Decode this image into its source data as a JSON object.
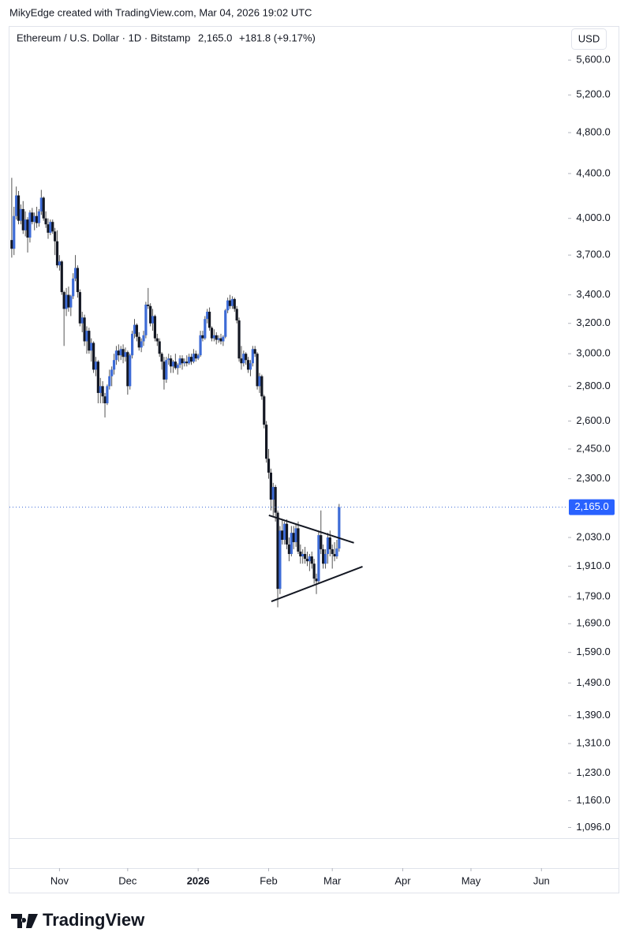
{
  "chart_data": {
    "type": "candlestick",
    "credit": "MikyEdge created with TradingView.com, Mar 04, 2026 19:02 UTC",
    "title": "Ethereum / U.S. Dollar · 1D · Bitstamp",
    "change": "+181.8 (+9.17%)",
    "currency": "USD",
    "brand": "TradingView",
    "last_price": {
      "value": 2165,
      "label": "2,165.0"
    },
    "log_scale": true,
    "up_color": "#3d6bd6",
    "down_color": "#131722",
    "xlim": [
      -1,
      244
    ],
    "xticks": [
      {
        "value": 21,
        "label": "Nov"
      },
      {
        "value": 51,
        "label": "Dec"
      },
      {
        "value": 82,
        "label": "2026"
      },
      {
        "value": 113,
        "label": "Feb"
      },
      {
        "value": 141,
        "label": "Mar"
      },
      {
        "value": 172,
        "label": "Apr"
      },
      {
        "value": 202,
        "label": "May"
      },
      {
        "value": 233,
        "label": "Jun"
      }
    ],
    "ylim": [
      1075,
      6000
    ],
    "yticks": [
      {
        "value": 5600,
        "label": "5,600.0"
      },
      {
        "value": 5200,
        "label": "5,200.0"
      },
      {
        "value": 4800,
        "label": "4,800.0"
      },
      {
        "value": 4400,
        "label": "4,400.0"
      },
      {
        "value": 4000,
        "label": "4,000.0"
      },
      {
        "value": 3700,
        "label": "3,700.0"
      },
      {
        "value": 3400,
        "label": "3,400.0"
      },
      {
        "value": 3200,
        "label": "3,200.0"
      },
      {
        "value": 3000,
        "label": "3,000.0"
      },
      {
        "value": 2800,
        "label": "2,800.0"
      },
      {
        "value": 2600,
        "label": "2,600.0"
      },
      {
        "value": 2450,
        "label": "2,450.0"
      },
      {
        "value": 2300,
        "label": "2,300.0"
      },
      {
        "value": 2030,
        "label": "2,030.0"
      },
      {
        "value": 1910,
        "label": "1,910.0"
      },
      {
        "value": 1790,
        "label": "1,790.0"
      },
      {
        "value": 1690,
        "label": "1,690.0"
      },
      {
        "value": 1590,
        "label": "1,590.0"
      },
      {
        "value": 1490,
        "label": "1,490.0"
      },
      {
        "value": 1390,
        "label": "1,390.0"
      },
      {
        "value": 1310,
        "label": "1,310.0"
      },
      {
        "value": 1230,
        "label": "1,230.0"
      },
      {
        "value": 1160,
        "label": "1,160.0"
      },
      {
        "value": 1096,
        "label": "1,096.0"
      }
    ],
    "trendlines": [
      {
        "points": [
          [
            113.1,
            2128
          ],
          [
            150.5,
            2007
          ]
        ]
      },
      {
        "points": [
          [
            114.2,
            1772
          ],
          [
            154.3,
            1908
          ]
        ]
      }
    ],
    "candles": [
      [
        3820,
        4360,
        3680,
        3750
      ],
      [
        3750,
        4100,
        3700,
        4020
      ],
      [
        4020,
        4280,
        3990,
        4200
      ],
      [
        4200,
        4240,
        3950,
        3980
      ],
      [
        3980,
        4120,
        3950,
        4080
      ],
      [
        4080,
        4150,
        3870,
        3900
      ],
      [
        3900,
        4060,
        3850,
        3990
      ],
      [
        3990,
        4010,
        3720,
        3840
      ],
      [
        3840,
        4070,
        3800,
        4050
      ],
      [
        4050,
        4090,
        3950,
        3970
      ],
      [
        3970,
        4050,
        3900,
        4020
      ],
      [
        4020,
        4100,
        3920,
        3960
      ],
      [
        3960,
        4080,
        3930,
        4060
      ],
      [
        4060,
        4250,
        4030,
        4180
      ],
      [
        4180,
        4190,
        3980,
        4000
      ],
      [
        4000,
        4060,
        3920,
        3950
      ],
      [
        3950,
        4000,
        3830,
        3880
      ],
      [
        3880,
        3990,
        3860,
        3970
      ],
      [
        3970,
        3990,
        3870,
        3890
      ],
      [
        3890,
        3920,
        3700,
        3810
      ],
      [
        3810,
        3900,
        3600,
        3620
      ],
      [
        3620,
        3700,
        3580,
        3650
      ],
      [
        3650,
        3660,
        3400,
        3420
      ],
      [
        3420,
        3430,
        3050,
        3300
      ],
      [
        3300,
        3450,
        3250,
        3400
      ],
      [
        3400,
        3460,
        3280,
        3310
      ],
      [
        3310,
        3400,
        3250,
        3390
      ],
      [
        3390,
        3560,
        3370,
        3520
      ],
      [
        3520,
        3700,
        3500,
        3600
      ],
      [
        3600,
        3620,
        3380,
        3420
      ],
      [
        3420,
        3440,
        3180,
        3200
      ],
      [
        3200,
        3280,
        3140,
        3240
      ],
      [
        3240,
        3260,
        3050,
        3080
      ],
      [
        3080,
        3180,
        3000,
        3150
      ],
      [
        3150,
        3170,
        3000,
        3020
      ],
      [
        3020,
        3100,
        2950,
        3070
      ],
      [
        3070,
        3080,
        2880,
        2900
      ],
      [
        2900,
        2980,
        2860,
        2950
      ],
      [
        2950,
        2960,
        2700,
        2760
      ],
      [
        2760,
        2850,
        2700,
        2800
      ],
      [
        2800,
        2830,
        2700,
        2740
      ],
      [
        2740,
        2760,
        2620,
        2700
      ],
      [
        2700,
        2810,
        2690,
        2800
      ],
      [
        2800,
        2900,
        2780,
        2860
      ],
      [
        2860,
        2920,
        2800,
        2900
      ],
      [
        2900,
        3000,
        2870,
        2960
      ],
      [
        2960,
        3050,
        2930,
        3020
      ],
      [
        3020,
        3060,
        2950,
        2990
      ],
      [
        2990,
        3050,
        2960,
        3030
      ],
      [
        3030,
        3060,
        2940,
        2980
      ],
      [
        2980,
        3040,
        2950,
        3010
      ],
      [
        3010,
        3020,
        2750,
        2800
      ],
      [
        2800,
        3000,
        2780,
        2990
      ],
      [
        2990,
        3150,
        2970,
        3130
      ],
      [
        3130,
        3230,
        3100,
        3190
      ],
      [
        3190,
        3200,
        3080,
        3110
      ],
      [
        3110,
        3140,
        3020,
        3040
      ],
      [
        3040,
        3100,
        3010,
        3080
      ],
      [
        3080,
        3150,
        3050,
        3120
      ],
      [
        3120,
        3350,
        3100,
        3330
      ],
      [
        3330,
        3450,
        3300,
        3320
      ],
      [
        3320,
        3340,
        3180,
        3200
      ],
      [
        3200,
        3300,
        3150,
        3250
      ],
      [
        3250,
        3260,
        3080,
        3100
      ],
      [
        3100,
        3130,
        3050,
        3080
      ],
      [
        3080,
        3100,
        2980,
        3000
      ],
      [
        3000,
        3010,
        2900,
        2950
      ],
      [
        2950,
        2980,
        2780,
        2840
      ],
      [
        2840,
        2980,
        2820,
        2960
      ],
      [
        2960,
        3000,
        2930,
        2970
      ],
      [
        2970,
        2990,
        2880,
        2920
      ],
      [
        2920,
        2960,
        2880,
        2950
      ],
      [
        2950,
        3000,
        2900,
        2910
      ],
      [
        2910,
        2940,
        2870,
        2930
      ],
      [
        2930,
        2990,
        2910,
        2970
      ],
      [
        2970,
        2990,
        2900,
        2940
      ],
      [
        2940,
        2970,
        2920,
        2950
      ],
      [
        2950,
        2990,
        2920,
        2940
      ],
      [
        2940,
        3000,
        2930,
        2980
      ],
      [
        2980,
        3000,
        2930,
        2950
      ],
      [
        2950,
        3030,
        2940,
        3000
      ],
      [
        3000,
        3020,
        2950,
        2970
      ],
      [
        2970,
        3000,
        2960,
        2990
      ],
      [
        2990,
        3150,
        2980,
        3120
      ],
      [
        3120,
        3150,
        3080,
        3100
      ],
      [
        3100,
        3250,
        3090,
        3230
      ],
      [
        3230,
        3300,
        3200,
        3280
      ],
      [
        3280,
        3310,
        3150,
        3170
      ],
      [
        3170,
        3180,
        3080,
        3100
      ],
      [
        3100,
        3160,
        3080,
        3120
      ],
      [
        3120,
        3140,
        3060,
        3090
      ],
      [
        3090,
        3120,
        3070,
        3100
      ],
      [
        3100,
        3130,
        3060,
        3080
      ],
      [
        3080,
        3120,
        3050,
        3110
      ],
      [
        3110,
        3300,
        3100,
        3290
      ],
      [
        3290,
        3380,
        3270,
        3360
      ],
      [
        3360,
        3400,
        3300,
        3320
      ],
      [
        3320,
        3390,
        3300,
        3370
      ],
      [
        3370,
        3380,
        3280,
        3300
      ],
      [
        3300,
        3320,
        3200,
        3220
      ],
      [
        3220,
        3240,
        2950,
        2970
      ],
      [
        2970,
        3050,
        2900,
        2940
      ],
      [
        2940,
        3020,
        2920,
        3000
      ],
      [
        3000,
        3010,
        2930,
        2960
      ],
      [
        2960,
        2980,
        2880,
        2900
      ],
      [
        2900,
        2960,
        2860,
        2940
      ],
      [
        2940,
        3050,
        2920,
        3030
      ],
      [
        3030,
        3050,
        2980,
        3000
      ],
      [
        3000,
        3010,
        2780,
        2800
      ],
      [
        2800,
        2880,
        2760,
        2860
      ],
      [
        2860,
        2870,
        2720,
        2740
      ],
      [
        2740,
        2750,
        2560,
        2580
      ],
      [
        2580,
        2600,
        2380,
        2400
      ],
      [
        2400,
        2450,
        2300,
        2330
      ],
      [
        2330,
        2350,
        2150,
        2200
      ],
      [
        2200,
        2280,
        2120,
        2260
      ],
      [
        2260,
        2270,
        2100,
        2140
      ],
      [
        2140,
        2150,
        1750,
        1820
      ],
      [
        1820,
        2080,
        1800,
        2060
      ],
      [
        2060,
        2110,
        2000,
        2020
      ],
      [
        2020,
        2100,
        2000,
        2090
      ],
      [
        2090,
        2110,
        1980,
        2000
      ],
      [
        2000,
        2030,
        1930,
        1960
      ],
      [
        1960,
        2080,
        1950,
        2050
      ],
      [
        2050,
        2080,
        1980,
        2010
      ],
      [
        2010,
        2090,
        1990,
        2070
      ],
      [
        2070,
        2100,
        1960,
        1970
      ],
      [
        1970,
        2000,
        1920,
        1950
      ],
      [
        1950,
        1980,
        1920,
        1960
      ],
      [
        1960,
        1990,
        1920,
        1940
      ],
      [
        1940,
        1970,
        1910,
        1930
      ],
      [
        1930,
        1960,
        1890,
        1950
      ],
      [
        1950,
        1970,
        1900,
        1920
      ],
      [
        1920,
        1940,
        1840,
        1860
      ],
      [
        1860,
        1880,
        1800,
        1850
      ],
      [
        1850,
        2060,
        1840,
        2040
      ],
      [
        2040,
        2150,
        1960,
        1980
      ],
      [
        1980,
        2000,
        1900,
        1920
      ],
      [
        1920,
        1980,
        1900,
        1960
      ],
      [
        1960,
        2050,
        1920,
        2030
      ],
      [
        2030,
        2060,
        1950,
        1980
      ],
      [
        1980,
        2000,
        1900,
        1960
      ],
      [
        1960,
        2010,
        1930,
        1950
      ],
      [
        1950,
        2020,
        1940,
        1983
      ],
      [
        1983,
        2180,
        1970,
        2165
      ]
    ]
  }
}
